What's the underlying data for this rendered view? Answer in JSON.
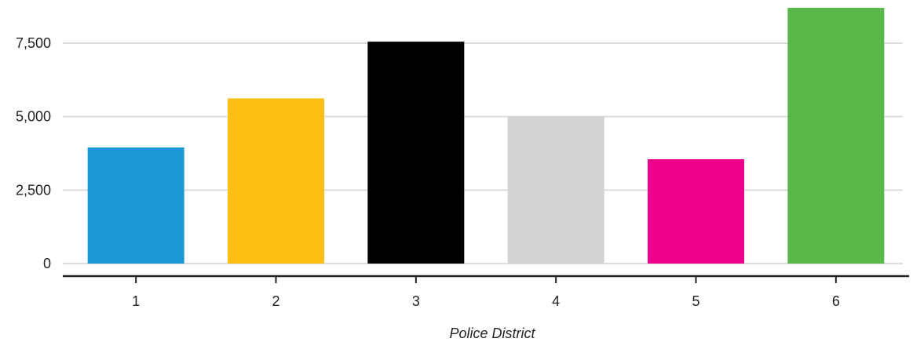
{
  "chart_data": {
    "type": "bar",
    "title": "",
    "xlabel": "Police District",
    "ylabel": "",
    "categories": [
      "1",
      "2",
      "3",
      "4",
      "5",
      "6"
    ],
    "values": [
      3950,
      5620,
      7550,
      5000,
      3550,
      8700
    ],
    "colors": [
      "#1a98d5",
      "#fdbf14",
      "#000000",
      "#d3d3d3",
      "#ec008c",
      "#58b848"
    ],
    "ylim": [
      0,
      8750
    ],
    "yticks": [
      0,
      2500,
      5000,
      7500
    ],
    "ytick_labels": [
      "0",
      "2,500",
      "5,000",
      "7,500"
    ],
    "grid": true,
    "legend": "none"
  }
}
